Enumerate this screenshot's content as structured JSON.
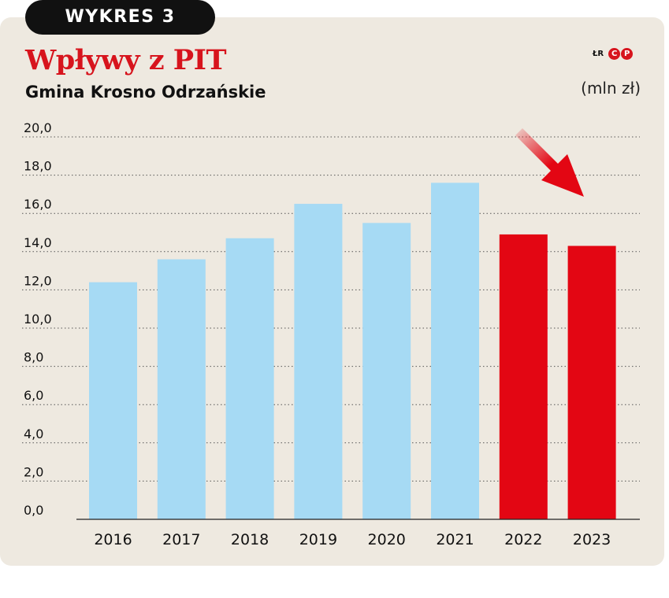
{
  "badge": "WYKRES 3",
  "unit": "(mln zł)",
  "credit": {
    "initials": "ŁR",
    "logo": [
      "C",
      "P"
    ]
  },
  "colors": {
    "past": "#a6daf4",
    "recent": "#e30613",
    "accent": "#d7141d",
    "background": "#eee9e0"
  },
  "chart_data": {
    "type": "bar",
    "title": "Wpływy z PIT",
    "subtitle": "Gmina Krosno Odrzańskie",
    "xlabel": "",
    "ylabel": "",
    "categories": [
      "2016",
      "2017",
      "2018",
      "2019",
      "2020",
      "2021",
      "2022",
      "2023"
    ],
    "values": [
      12.4,
      13.6,
      14.7,
      16.5,
      15.5,
      17.6,
      14.9,
      14.3
    ],
    "bar_colors": [
      "past",
      "past",
      "past",
      "past",
      "past",
      "past",
      "recent",
      "recent"
    ],
    "yticks": [
      "0,0",
      "2,0",
      "4,0",
      "6,0",
      "8,0",
      "10,0",
      "12,0",
      "14,0",
      "16,0",
      "18,0",
      "20,0"
    ],
    "ylim": [
      0,
      20
    ],
    "grid": true,
    "annotation": "red-down-arrow"
  }
}
